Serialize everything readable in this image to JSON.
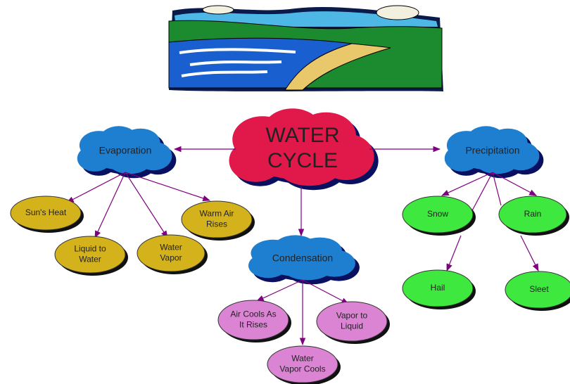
{
  "title": [
    "WATER",
    "CYCLE"
  ],
  "nodes": [
    {
      "label": [
        "Evaporation"
      ]
    },
    {
      "label": [
        "Precipitation"
      ]
    },
    {
      "label": [
        "Condensation"
      ]
    },
    {
      "label": [
        "Sun's Heat"
      ]
    },
    {
      "label": [
        "Liquid to",
        "Water"
      ]
    },
    {
      "label": [
        "Water",
        "Vapor"
      ]
    },
    {
      "label": [
        "Warm Air",
        "Rises"
      ]
    },
    {
      "label": [
        "Snow"
      ]
    },
    {
      "label": [
        "Rain"
      ]
    },
    {
      "label": [
        "Hail"
      ]
    },
    {
      "label": [
        "Sleet"
      ]
    },
    {
      "label": [
        "Air Cools As",
        "It Rises"
      ]
    },
    {
      "label": [
        "Vapor to",
        "Liquid"
      ]
    },
    {
      "label": [
        "Water",
        "Vapor Cools"
      ]
    }
  ]
}
